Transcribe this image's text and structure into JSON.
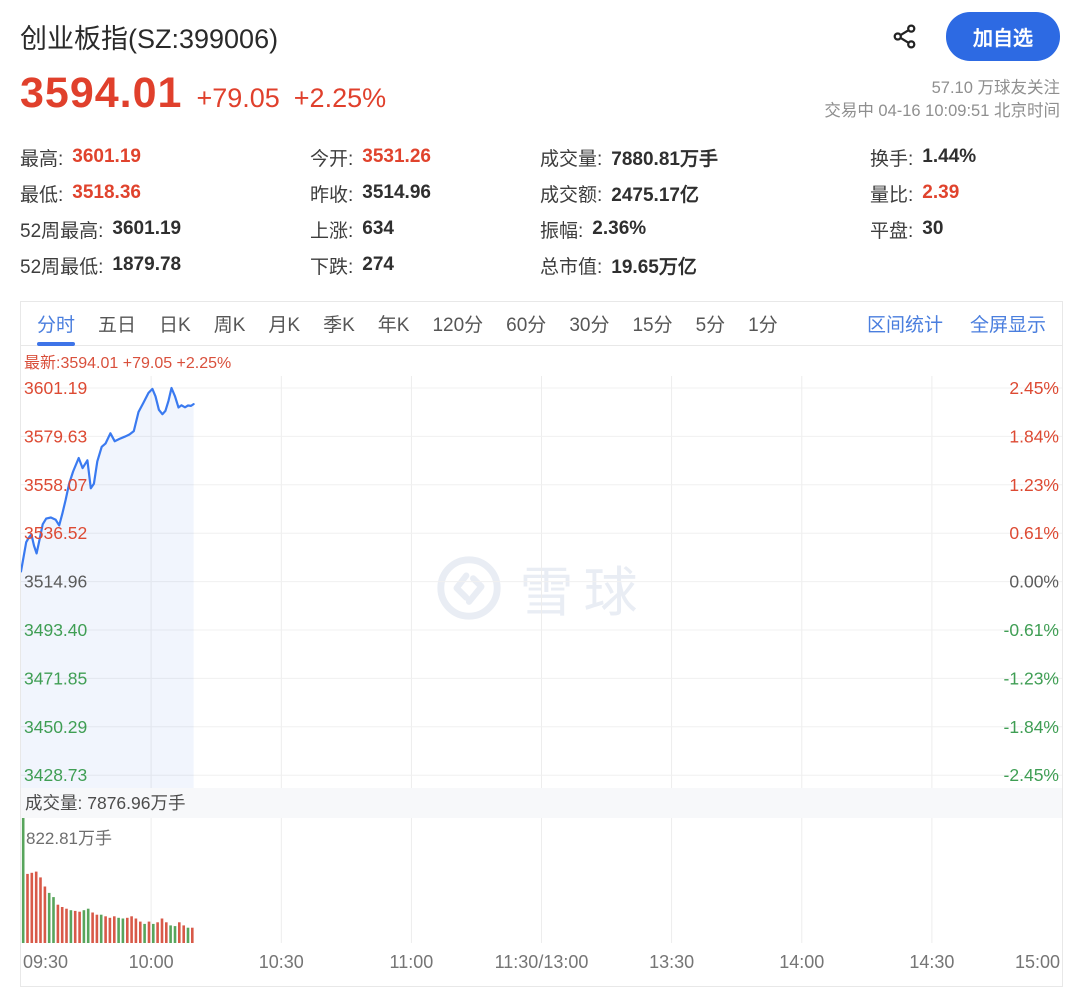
{
  "header": {
    "title": "创业板指(SZ:399006)",
    "add_watchlist_label": "加自选",
    "price": "3594.01",
    "change": "+79.05",
    "change_pct": "+2.25%",
    "followers": "57.10 万球友关注",
    "session_status": "交易中 04-16 10:09:51 北京时间"
  },
  "colors": {
    "up_red": "#e0432d",
    "down_green": "#3f9e54",
    "flat_gray": "#5c5c5c",
    "line_blue": "#3a7af0",
    "button_blue": "#2d6ae3",
    "link_blue": "#4a7ede",
    "vol_up_red": "#d85948",
    "vol_down_green": "#58a55c"
  },
  "stats": {
    "columns": [
      {
        "rows": [
          {
            "label": "最高:",
            "value": "3601.19",
            "tone": "up"
          },
          {
            "label": "最低:",
            "value": "3518.36",
            "tone": "up"
          },
          {
            "label": "52周最高:",
            "value": "3601.19",
            "tone": "normal"
          },
          {
            "label": "52周最低:",
            "value": "1879.78",
            "tone": "normal"
          }
        ]
      },
      {
        "rows": [
          {
            "label": "今开:",
            "value": "3531.26",
            "tone": "up"
          },
          {
            "label": "昨收:",
            "value": "3514.96",
            "tone": "normal"
          },
          {
            "label": "上涨:",
            "value": "634",
            "tone": "normal"
          },
          {
            "label": "下跌:",
            "value": "274",
            "tone": "normal"
          }
        ]
      },
      {
        "rows": [
          {
            "label": "成交量:",
            "value": "7880.81万手",
            "tone": "normal"
          },
          {
            "label": "成交额:",
            "value": "2475.17亿",
            "tone": "normal"
          },
          {
            "label": "振幅:",
            "value": "2.36%",
            "tone": "normal"
          },
          {
            "label": "总市值:",
            "value": "19.65万亿",
            "tone": "normal"
          }
        ]
      },
      {
        "rows": [
          {
            "label": "换手:",
            "value": "1.44%",
            "tone": "normal"
          },
          {
            "label": "量比:",
            "value": "2.39",
            "tone": "up"
          },
          {
            "label": "平盘:",
            "value": "30",
            "tone": "normal"
          }
        ]
      }
    ]
  },
  "tabs": {
    "items": [
      "分时",
      "五日",
      "日K",
      "周K",
      "月K",
      "季K",
      "年K",
      "120分",
      "60分",
      "30分",
      "15分",
      "5分",
      "1分"
    ],
    "active": "分时",
    "links": [
      "区间统计",
      "全屏显示"
    ]
  },
  "chart_data": {
    "type": "line",
    "title": "创业板指 分时走势",
    "latest_label": "最新:3594.01 +79.05 +2.25%",
    "watermark": "雪球",
    "grid": true,
    "legend": "none",
    "x_axis": [
      "09:30",
      "10:00",
      "10:30",
      "11:00",
      "11:30/13:00",
      "13:30",
      "14:00",
      "14:30",
      "15:00"
    ],
    "minutes_total": 240,
    "prev_close": 3514.96,
    "price_axis": [
      {
        "value": 3601.19,
        "label": "3601.19",
        "pct": "2.45%",
        "tone": "up"
      },
      {
        "value": 3579.63,
        "label": "3579.63",
        "pct": "1.84%",
        "tone": "up"
      },
      {
        "value": 3558.07,
        "label": "3558.07",
        "pct": "1.23%",
        "tone": "up"
      },
      {
        "value": 3536.52,
        "label": "3536.52",
        "pct": "0.61%",
        "tone": "up"
      },
      {
        "value": 3514.96,
        "label": "3514.96",
        "pct": "0.00%",
        "tone": "flat"
      },
      {
        "value": 3493.4,
        "label": "3493.40",
        "pct": "-0.61%",
        "tone": "down"
      },
      {
        "value": 3471.85,
        "label": "3471.85",
        "pct": "-1.23%",
        "tone": "down"
      },
      {
        "value": 3450.29,
        "label": "3450.29",
        "pct": "-1.84%",
        "tone": "down"
      },
      {
        "value": 3428.73,
        "label": "3428.73",
        "pct": "-2.45%",
        "tone": "down"
      }
    ],
    "series": [
      {
        "name": "price",
        "points": [
          [
            0,
            3519.5
          ],
          [
            0.6,
            3526
          ],
          [
            1.2,
            3532.5
          ],
          [
            1.8,
            3534.5
          ],
          [
            2.4,
            3536
          ],
          [
            3,
            3531
          ],
          [
            3.6,
            3527.5
          ],
          [
            4.3,
            3534
          ],
          [
            5,
            3540.5
          ],
          [
            5.8,
            3543
          ],
          [
            6.9,
            3543.5
          ],
          [
            8,
            3542.5
          ],
          [
            8.8,
            3540
          ],
          [
            9.5,
            3545
          ],
          [
            10.3,
            3551.5
          ],
          [
            11.1,
            3558.5
          ],
          [
            12,
            3564
          ],
          [
            13.3,
            3570
          ],
          [
            14.2,
            3565.5
          ],
          [
            15.3,
            3569
          ],
          [
            16.1,
            3556.5
          ],
          [
            16.8,
            3558.5
          ],
          [
            17.6,
            3568.5
          ],
          [
            18.6,
            3575
          ],
          [
            19.5,
            3576.5
          ],
          [
            20.6,
            3581
          ],
          [
            21.6,
            3577.5
          ],
          [
            22.7,
            3578.5
          ],
          [
            23.9,
            3579.5
          ],
          [
            25,
            3580.5
          ],
          [
            26,
            3582
          ],
          [
            27.1,
            3590.5
          ],
          [
            28.2,
            3594.5
          ],
          [
            29.4,
            3599
          ],
          [
            30.3,
            3600.8
          ],
          [
            31,
            3597.5
          ],
          [
            31.8,
            3591.5
          ],
          [
            32.6,
            3589.5
          ],
          [
            33.3,
            3591
          ],
          [
            34,
            3595.5
          ],
          [
            34.7,
            3601.19
          ],
          [
            35.5,
            3597.5
          ],
          [
            36.3,
            3592.5
          ],
          [
            37,
            3593.5
          ],
          [
            37.8,
            3592.6
          ],
          [
            38.5,
            3593.4
          ],
          [
            39.2,
            3593.2
          ],
          [
            39.8,
            3594.01
          ]
        ]
      }
    ],
    "volume_header": "成交量: 7876.96万手",
    "volume_max_label": "822.81万手",
    "volume_axis_max": 822.81,
    "volume_bars": [
      [
        822.81,
        "down"
      ],
      [
        455,
        "up"
      ],
      [
        462,
        "up"
      ],
      [
        470,
        "up"
      ],
      [
        432,
        "up"
      ],
      [
        372,
        "up"
      ],
      [
        330,
        "down"
      ],
      [
        302,
        "down"
      ],
      [
        252,
        "up"
      ],
      [
        237,
        "up"
      ],
      [
        226,
        "up"
      ],
      [
        216,
        "down"
      ],
      [
        211,
        "up"
      ],
      [
        206,
        "up"
      ],
      [
        216,
        "down"
      ],
      [
        226,
        "down"
      ],
      [
        201,
        "up"
      ],
      [
        186,
        "up"
      ],
      [
        186,
        "down"
      ],
      [
        176,
        "up"
      ],
      [
        166,
        "up"
      ],
      [
        176,
        "up"
      ],
      [
        166,
        "down"
      ],
      [
        161,
        "down"
      ],
      [
        166,
        "up"
      ],
      [
        176,
        "up"
      ],
      [
        161,
        "up"
      ],
      [
        141,
        "up"
      ],
      [
        126,
        "down"
      ],
      [
        141,
        "up"
      ],
      [
        126,
        "down"
      ],
      [
        136,
        "up"
      ],
      [
        161,
        "up"
      ],
      [
        136,
        "up"
      ],
      [
        116,
        "down"
      ],
      [
        111,
        "down"
      ],
      [
        136,
        "up"
      ],
      [
        116,
        "up"
      ],
      [
        101,
        "down"
      ],
      [
        101,
        "up"
      ]
    ]
  }
}
